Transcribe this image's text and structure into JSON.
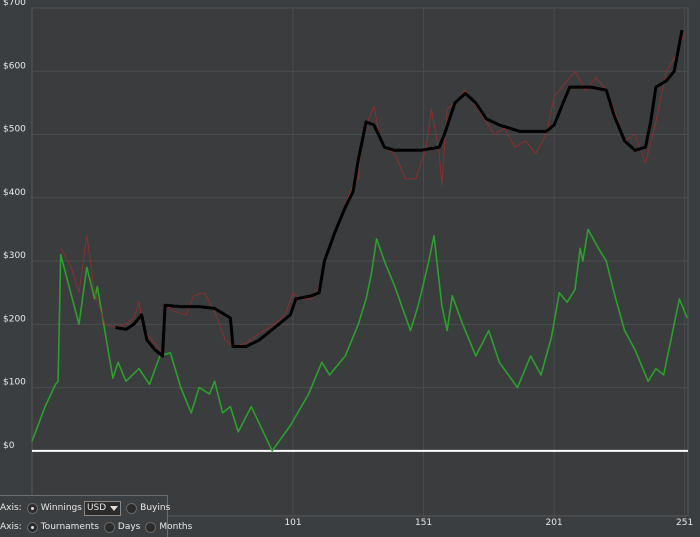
{
  "chart_data": {
    "type": "line",
    "xlim": [
      1,
      252.3
    ],
    "ylim": [
      -103,
      700
    ],
    "xticks": [
      101,
      151,
      201,
      251
    ],
    "yticks": [
      {
        "value": 0,
        "label": "$0"
      },
      {
        "value": 100,
        "label": "$100"
      },
      {
        "value": 200,
        "label": "$200"
      },
      {
        "value": 300,
        "label": "$300"
      },
      {
        "value": 400,
        "label": "$400"
      },
      {
        "value": 500,
        "label": "$500"
      },
      {
        "value": 600,
        "label": "$600"
      },
      {
        "value": 700,
        "label": "$700"
      }
    ],
    "grid": true,
    "series": [
      {
        "color": "#2ca02c",
        "width": 1.6,
        "x": [
          1,
          6,
          10,
          11,
          12,
          19,
          22,
          25,
          26,
          32,
          34,
          37,
          42,
          46,
          50,
          54,
          58,
          62,
          65,
          69,
          71,
          74,
          77,
          80,
          85,
          93,
          100,
          107,
          112,
          115,
          121,
          126,
          129,
          131,
          133,
          136,
          140,
          146,
          149,
          153,
          155,
          158,
          160,
          162,
          166,
          171,
          176,
          180,
          187,
          192,
          196,
          200,
          203,
          206,
          209,
          211,
          212,
          214,
          218,
          221,
          224,
          228,
          232,
          237,
          240,
          243,
          245,
          249,
          252
        ],
        "values": [
          15,
          70,
          105,
          110,
          310,
          200,
          290,
          240,
          260,
          115,
          140,
          110,
          130,
          105,
          150,
          155,
          100,
          60,
          100,
          90,
          110,
          60,
          70,
          30,
          70,
          0,
          40,
          90,
          140,
          120,
          150,
          200,
          240,
          280,
          335,
          300,
          260,
          190,
          230,
          300,
          340,
          230,
          190,
          245,
          200,
          150,
          190,
          140,
          100,
          150,
          120,
          180,
          250,
          235,
          255,
          320,
          300,
          350,
          320,
          300,
          250,
          190,
          160,
          110,
          130,
          120,
          160,
          240,
          210
        ]
      },
      {
        "color": "#8a2f2f",
        "width": 1,
        "x": [
          12,
          16,
          19,
          22,
          25,
          29,
          33,
          37,
          40,
          42,
          44,
          48,
          51,
          52,
          56,
          60,
          63,
          67,
          71,
          75,
          78,
          83,
          88,
          94,
          98,
          101,
          104,
          108,
          111,
          113,
          117,
          121,
          124,
          126,
          127,
          130,
          132,
          134,
          136,
          140,
          144,
          148,
          152,
          154,
          157,
          158,
          160,
          163,
          167,
          171,
          175,
          178,
          182,
          186,
          190,
          194,
          198,
          201,
          205,
          209,
          213,
          217,
          221,
          224,
          228,
          232,
          236,
          240,
          244,
          247,
          251
        ],
        "values": [
          320,
          290,
          250,
          340,
          250,
          200,
          195,
          200,
          210,
          235,
          190,
          170,
          155,
          230,
          220,
          215,
          245,
          250,
          220,
          175,
          165,
          170,
          185,
          200,
          215,
          250,
          240,
          240,
          260,
          300,
          340,
          390,
          420,
          430,
          480,
          525,
          545,
          500,
          480,
          470,
          430,
          430,
          480,
          540,
          470,
          420,
          540,
          550,
          570,
          545,
          520,
          500,
          510,
          480,
          490,
          470,
          500,
          560,
          580,
          600,
          570,
          590,
          570,
          540,
          490,
          500,
          455,
          520,
          600,
          620,
          660
        ]
      },
      {
        "color": "#000000",
        "width": 3,
        "x": [
          33,
          37,
          40,
          43,
          45,
          48,
          51,
          52,
          58,
          65,
          71,
          77,
          78,
          83,
          88,
          94,
          100,
          102,
          108,
          111,
          113,
          117,
          121,
          124,
          126,
          129,
          132,
          136,
          140,
          150,
          157,
          159,
          163,
          167,
          171,
          175,
          180,
          188,
          198,
          201,
          207,
          215,
          221,
          224,
          228,
          232,
          236,
          238,
          240,
          244,
          247,
          250
        ],
        "values": [
          195,
          192,
          200,
          215,
          175,
          160,
          150,
          230,
          228,
          228,
          225,
          210,
          165,
          165,
          175,
          195,
          215,
          240,
          245,
          250,
          300,
          345,
          385,
          410,
          460,
          520,
          515,
          480,
          475,
          475,
          480,
          500,
          550,
          565,
          550,
          525,
          515,
          505,
          505,
          515,
          575,
          575,
          570,
          530,
          490,
          475,
          480,
          520,
          575,
          585,
          600,
          665
        ]
      }
    ]
  },
  "controls": {
    "row1": {
      "label": "Axis:",
      "option1": "Winnings",
      "select": "USD",
      "option2": "Buyins"
    },
    "row2": {
      "label": "Axis:",
      "option1": "Tournaments",
      "option2": "Days",
      "option3": "Months"
    }
  }
}
